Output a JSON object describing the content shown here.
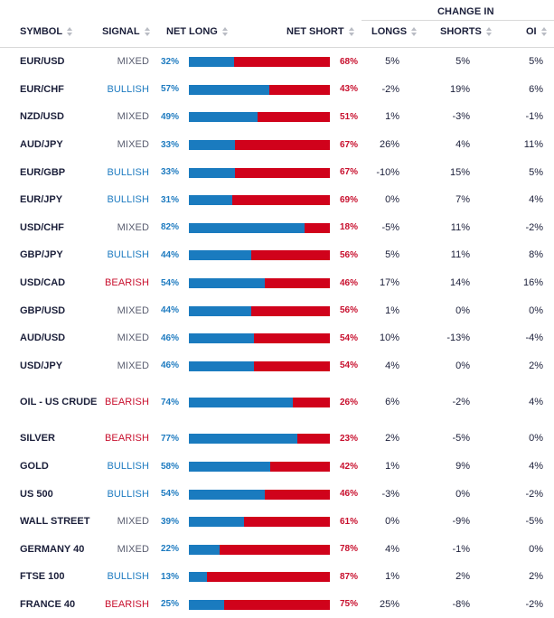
{
  "header": {
    "group_label": "CHANGE IN",
    "columns": {
      "symbol": "SYMBOL",
      "signal": "SIGNAL",
      "net_long": "NET LONG",
      "net_short": "NET SHORT",
      "longs": "LONGS",
      "shorts": "SHORTS",
      "oi": "OI"
    }
  },
  "colors": {
    "long": "#1a7bbf",
    "short": "#d0021b",
    "bullish": "#1e7bc0",
    "bearish": "#c8102e",
    "mixed": "#5a5e70"
  },
  "rows": [
    {
      "symbol": "EUR/USD",
      "signal": "MIXED",
      "net_long": "32%",
      "net_long_value": 32,
      "net_short": "68%",
      "longs": "5%",
      "shorts": "5%",
      "oi": "5%"
    },
    {
      "symbol": "EUR/CHF",
      "signal": "BULLISH",
      "net_long": "57%",
      "net_long_value": 57,
      "net_short": "43%",
      "longs": "-2%",
      "shorts": "19%",
      "oi": "6%"
    },
    {
      "symbol": "NZD/USD",
      "signal": "MIXED",
      "net_long": "49%",
      "net_long_value": 49,
      "net_short": "51%",
      "longs": "1%",
      "shorts": "-3%",
      "oi": "-1%"
    },
    {
      "symbol": "AUD/JPY",
      "signal": "MIXED",
      "net_long": "33%",
      "net_long_value": 33,
      "net_short": "67%",
      "longs": "26%",
      "shorts": "4%",
      "oi": "11%"
    },
    {
      "symbol": "EUR/GBP",
      "signal": "BULLISH",
      "net_long": "33%",
      "net_long_value": 33,
      "net_short": "67%",
      "longs": "-10%",
      "shorts": "15%",
      "oi": "5%"
    },
    {
      "symbol": "EUR/JPY",
      "signal": "BULLISH",
      "net_long": "31%",
      "net_long_value": 31,
      "net_short": "69%",
      "longs": "0%",
      "shorts": "7%",
      "oi": "4%"
    },
    {
      "symbol": "USD/CHF",
      "signal": "MIXED",
      "net_long": "82%",
      "net_long_value": 82,
      "net_short": "18%",
      "longs": "-5%",
      "shorts": "11%",
      "oi": "-2%"
    },
    {
      "symbol": "GBP/JPY",
      "signal": "BULLISH",
      "net_long": "44%",
      "net_long_value": 44,
      "net_short": "56%",
      "longs": "5%",
      "shorts": "11%",
      "oi": "8%"
    },
    {
      "symbol": "USD/CAD",
      "signal": "BEARISH",
      "net_long": "54%",
      "net_long_value": 54,
      "net_short": "46%",
      "longs": "17%",
      "shorts": "14%",
      "oi": "16%"
    },
    {
      "symbol": "GBP/USD",
      "signal": "MIXED",
      "net_long": "44%",
      "net_long_value": 44,
      "net_short": "56%",
      "longs": "1%",
      "shorts": "0%",
      "oi": "0%"
    },
    {
      "symbol": "AUD/USD",
      "signal": "MIXED",
      "net_long": "46%",
      "net_long_value": 46,
      "net_short": "54%",
      "longs": "10%",
      "shorts": "-13%",
      "oi": "-4%"
    },
    {
      "symbol": "USD/JPY",
      "signal": "MIXED",
      "net_long": "46%",
      "net_long_value": 46,
      "net_short": "54%",
      "longs": "4%",
      "shorts": "0%",
      "oi": "2%"
    },
    {
      "symbol": "OIL - US CRUDE",
      "signal": "BEARISH",
      "net_long": "74%",
      "net_long_value": 74,
      "net_short": "26%",
      "longs": "6%",
      "shorts": "-2%",
      "oi": "4%"
    },
    {
      "symbol": "SILVER",
      "signal": "BEARISH",
      "net_long": "77%",
      "net_long_value": 77,
      "net_short": "23%",
      "longs": "2%",
      "shorts": "-5%",
      "oi": "0%"
    },
    {
      "symbol": "GOLD",
      "signal": "BULLISH",
      "net_long": "58%",
      "net_long_value": 58,
      "net_short": "42%",
      "longs": "1%",
      "shorts": "9%",
      "oi": "4%"
    },
    {
      "symbol": "US 500",
      "signal": "BULLISH",
      "net_long": "54%",
      "net_long_value": 54,
      "net_short": "46%",
      "longs": "-3%",
      "shorts": "0%",
      "oi": "-2%"
    },
    {
      "symbol": "WALL STREET",
      "signal": "MIXED",
      "net_long": "39%",
      "net_long_value": 39,
      "net_short": "61%",
      "longs": "0%",
      "shorts": "-9%",
      "oi": "-5%"
    },
    {
      "symbol": "GERMANY 40",
      "signal": "MIXED",
      "net_long": "22%",
      "net_long_value": 22,
      "net_short": "78%",
      "longs": "4%",
      "shorts": "-1%",
      "oi": "0%"
    },
    {
      "symbol": "FTSE 100",
      "signal": "BULLISH",
      "net_long": "13%",
      "net_long_value": 13,
      "net_short": "87%",
      "longs": "1%",
      "shorts": "2%",
      "oi": "2%"
    },
    {
      "symbol": "FRANCE 40",
      "signal": "BEARISH",
      "net_long": "25%",
      "net_long_value": 25,
      "net_short": "75%",
      "longs": "25%",
      "shorts": "-8%",
      "oi": "-2%"
    }
  ]
}
